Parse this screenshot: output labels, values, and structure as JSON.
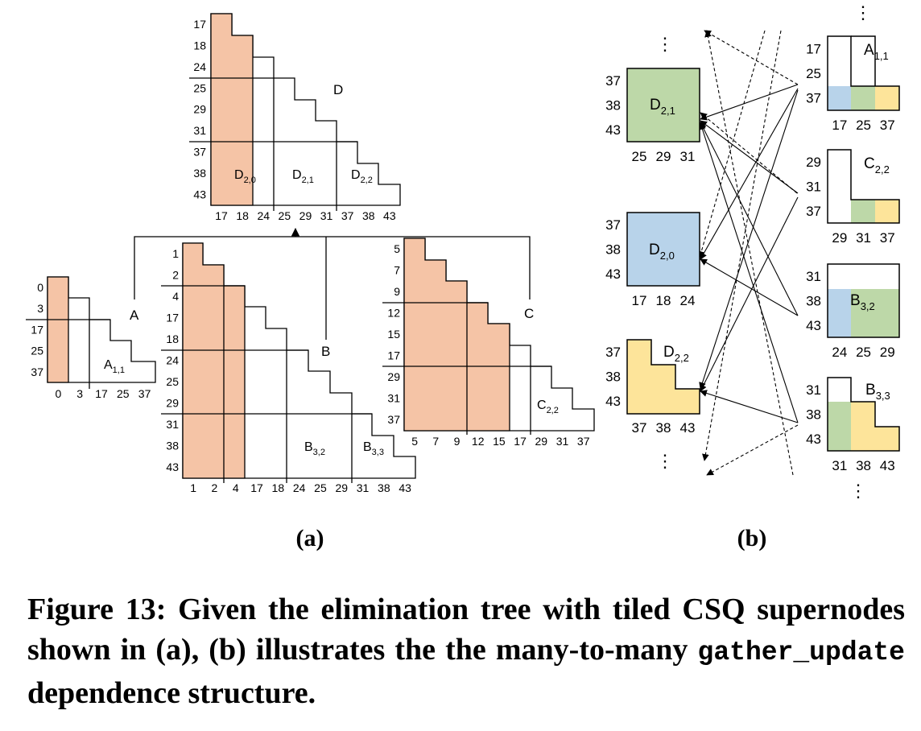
{
  "panel_a": {
    "label": "(a)",
    "D": {
      "name": "D",
      "rows": [
        "17",
        "18",
        "24",
        "25",
        "29",
        "31",
        "37",
        "38",
        "43"
      ],
      "cols": [
        "17",
        "18",
        "24",
        "25",
        "29",
        "31",
        "37",
        "38",
        "43"
      ],
      "tiles": [
        {
          "main": "D",
          "sub": "2,0"
        },
        {
          "main": "D",
          "sub": "2,1"
        },
        {
          "main": "D",
          "sub": "2,2"
        }
      ]
    },
    "A": {
      "name": "A",
      "rows": [
        "0",
        "3",
        "17",
        "25",
        "37"
      ],
      "cols": [
        "0",
        "3",
        "17",
        "25",
        "37"
      ],
      "tile": {
        "main": "A",
        "sub": "1,1"
      }
    },
    "B": {
      "name": "B",
      "rows": [
        "1",
        "2",
        "4",
        "17",
        "18",
        "24",
        "25",
        "29",
        "31",
        "38",
        "43"
      ],
      "cols": [
        "1",
        "2",
        "4",
        "17",
        "18",
        "24",
        "25",
        "29",
        "31",
        "38",
        "43"
      ],
      "tiles": [
        {
          "main": "B",
          "sub": "3,2"
        },
        {
          "main": "B",
          "sub": "3,3"
        }
      ]
    },
    "C": {
      "name": "C",
      "rows": [
        "5",
        "7",
        "9",
        "12",
        "15",
        "17",
        "29",
        "31",
        "37"
      ],
      "cols": [
        "5",
        "7",
        "9",
        "12",
        "15",
        "17",
        "29",
        "31",
        "37"
      ],
      "tile": {
        "main": "C",
        "sub": "2,2"
      }
    }
  },
  "panel_b": {
    "label": "(b)",
    "ellipsis": "⋮",
    "targets": [
      {
        "main": "D",
        "sub": "2,1",
        "rows": [
          "37",
          "38",
          "43"
        ],
        "cols": [
          "25",
          "29",
          "31"
        ],
        "color": "#bdd8a8"
      },
      {
        "main": "D",
        "sub": "2,0",
        "rows": [
          "37",
          "38",
          "43"
        ],
        "cols": [
          "17",
          "18",
          "24"
        ],
        "color": "#b8d3ea"
      },
      {
        "main": "D",
        "sub": "2,2",
        "rows": [
          "37",
          "38",
          "43"
        ],
        "cols": [
          "37",
          "38",
          "43"
        ],
        "color": "#fde49a"
      }
    ],
    "sources": [
      {
        "main": "A",
        "sub": "1,1",
        "rows": [
          "17",
          "25",
          "37"
        ],
        "cols": [
          "17",
          "25",
          "37"
        ]
      },
      {
        "main": "C",
        "sub": "2,2",
        "rows": [
          "29",
          "31",
          "37"
        ],
        "cols": [
          "29",
          "31",
          "37"
        ]
      },
      {
        "main": "B",
        "sub": "3,2",
        "rows": [
          "31",
          "38",
          "43"
        ],
        "cols": [
          "24",
          "25",
          "29"
        ]
      },
      {
        "main": "B",
        "sub": "3,3",
        "rows": [
          "31",
          "38",
          "43"
        ],
        "cols": [
          "31",
          "38",
          "43"
        ]
      }
    ]
  },
  "colors": {
    "supernode_fill": "#f5c4a6",
    "green": "#bdd8a8",
    "blue": "#b8d3ea",
    "yellow": "#fde49a"
  },
  "caption": {
    "lead": "Figure 13: Given the elimination tree with tiled CSQ supernodes shown in (a), (b) illustrates the the many-to-many",
    "code": "gather_update",
    "tail": "dependence structure."
  }
}
